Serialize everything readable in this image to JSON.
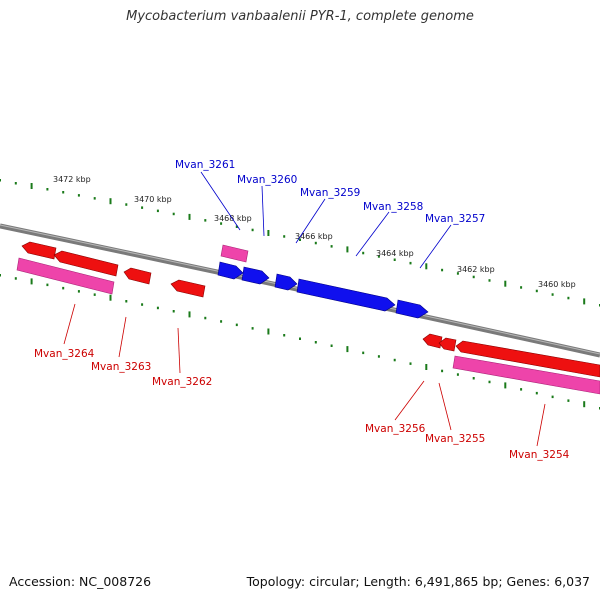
{
  "header": {
    "title": "Mycobacterium vanbaalenii PYR-1, complete genome"
  },
  "footer": {
    "accession": "Accession: NC_008726",
    "summary": "Topology: circular; Length: 6,491,865 bp; Genes: 6,037"
  },
  "colors": {
    "backbone": "#7a7a7a",
    "forward_gene": "#1010ee",
    "reverse_gene": "#ee1010",
    "cds_feature": "#ee44aa",
    "tick": "#1a7a1a",
    "forward_label": "#0000cc",
    "reverse_label": "#cc0000"
  },
  "scale_labels": [
    "3472 kbp",
    "3470 kbp",
    "3468 kbp",
    "3466 kbp",
    "3464 kbp",
    "3462 kbp",
    "3460 kbp"
  ],
  "genes": {
    "forward": [
      "Mvan_3261",
      "Mvan_3260",
      "Mvan_3259",
      "Mvan_3258",
      "Mvan_3257"
    ],
    "reverse": [
      "Mvan_3264",
      "Mvan_3263",
      "Mvan_3262",
      "Mvan_3256",
      "Mvan_3255",
      "Mvan_3254"
    ]
  }
}
